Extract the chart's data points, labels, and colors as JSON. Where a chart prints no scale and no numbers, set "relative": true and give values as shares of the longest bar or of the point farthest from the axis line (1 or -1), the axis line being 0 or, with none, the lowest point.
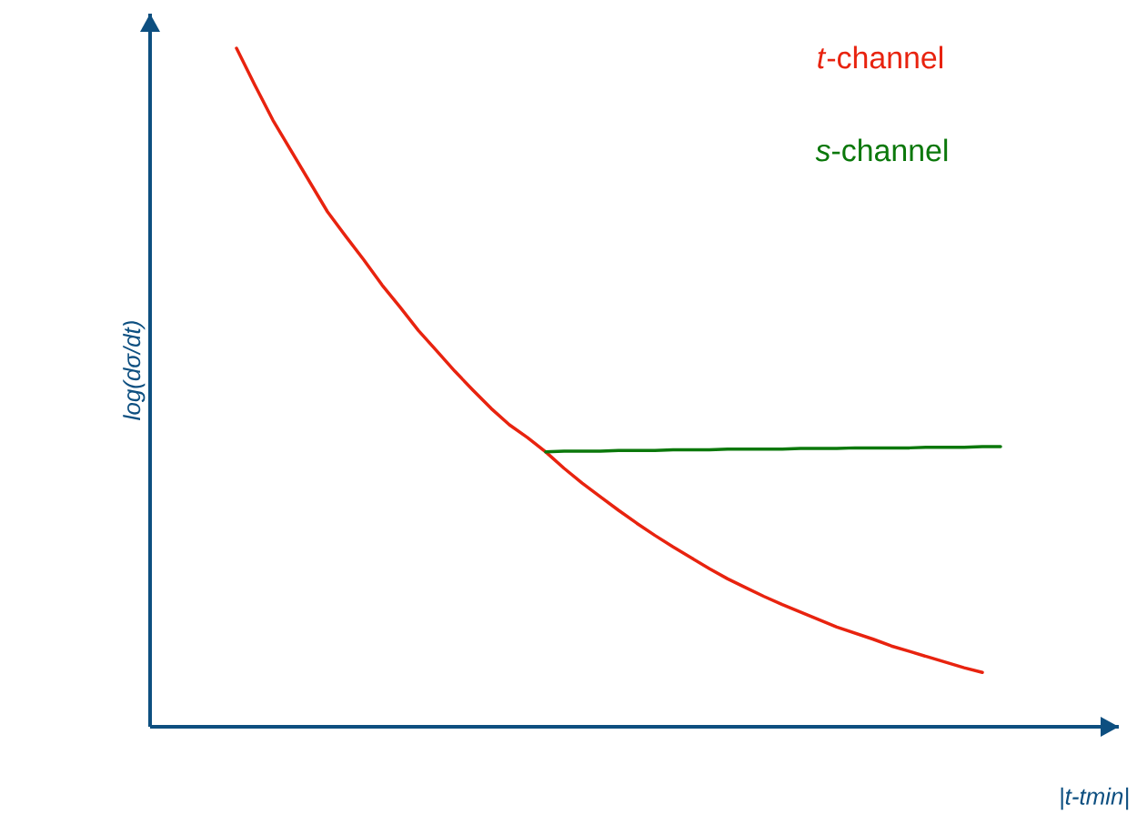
{
  "chart_data": {
    "type": "line",
    "relative": true,
    "xlabel": "|t-tmin|",
    "ylabel": "log(dσ/dt)",
    "categories": [
      null,
      null,
      null,
      null,
      null,
      null,
      null,
      null,
      null,
      null,
      null,
      null,
      null,
      null,
      null,
      null,
      null,
      null,
      null,
      null,
      null,
      null,
      null,
      null,
      null,
      null,
      null,
      null,
      null,
      null,
      null,
      null,
      null,
      null,
      null,
      null,
      null,
      null,
      null,
      null,
      null,
      null,
      null
    ],
    "series": [
      {
        "name": "*t*-channel",
        "color": "#e8230f",
        "values": [
          1.0,
          0.946,
          0.894,
          0.849,
          0.804,
          0.759,
          0.723,
          0.688,
          0.651,
          0.618,
          0.584,
          0.554,
          0.524,
          0.496,
          0.469,
          0.445,
          0.426,
          0.405,
          0.381,
          0.359,
          0.339,
          0.319,
          0.3,
          0.282,
          0.265,
          0.249,
          0.233,
          0.218,
          0.205,
          0.192,
          0.18,
          0.169,
          0.158,
          0.147,
          0.138,
          0.129,
          0.119,
          0.111,
          0.103,
          0.095,
          0.087,
          0.08,
          null
        ]
      },
      {
        "name": "*s*-channel",
        "color": "#0b780b",
        "values": [
          null,
          null,
          null,
          null,
          null,
          null,
          null,
          null,
          null,
          null,
          null,
          null,
          null,
          null,
          null,
          null,
          null,
          0.405,
          0.406,
          0.406,
          0.406,
          0.407,
          0.407,
          0.407,
          0.408,
          0.408,
          0.408,
          0.409,
          0.409,
          0.409,
          0.409,
          0.41,
          0.41,
          0.41,
          0.411,
          0.411,
          0.411,
          0.411,
          0.412,
          0.412,
          0.412,
          0.413,
          0.413
        ]
      }
    ]
  }
}
